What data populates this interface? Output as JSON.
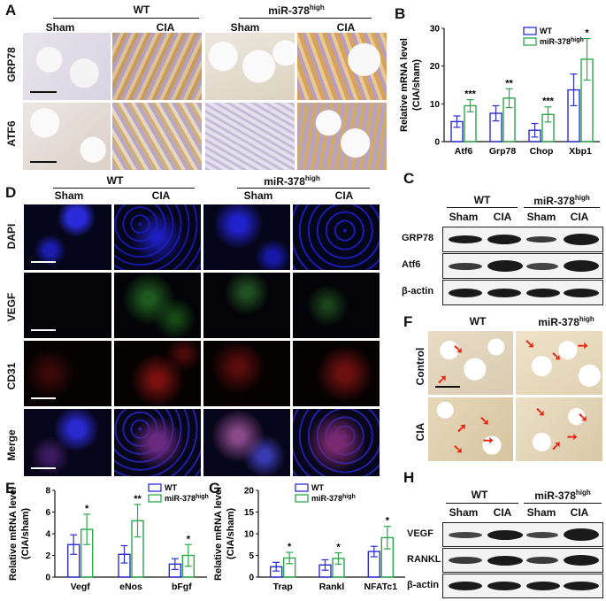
{
  "panels": {
    "A": "A",
    "B": "B",
    "C": "C",
    "D": "D",
    "E": "E",
    "F": "F",
    "G": "G",
    "H": "H"
  },
  "groups": {
    "wt": "WT",
    "mir": "miR-378",
    "mir_sup": "high"
  },
  "conditions": {
    "sham": "Sham",
    "cia": "CIA",
    "control": "Control"
  },
  "panelA": {
    "rows": [
      "GRP78",
      "ATF6"
    ]
  },
  "panelD": {
    "rows": [
      "DAPI",
      "VEGF",
      "CD31",
      "Merge"
    ]
  },
  "panelC": {
    "rows": [
      "GRP78",
      "Atf6",
      "β-actin"
    ]
  },
  "panelH": {
    "rows": [
      "VEGF",
      "RANKL",
      "β-actin"
    ]
  },
  "colors": {
    "wt": "#2b2bd6",
    "mir": "#2aa84a"
  },
  "chart_data": [
    {
      "id": "B",
      "type": "bar",
      "ylabel_line1": "Relative mRNA level",
      "ylabel_line2": "(CIA/sham)",
      "ylim": [
        0,
        30
      ],
      "yticks": [
        "0",
        "10",
        "20",
        "30"
      ],
      "categories": [
        "Atf6",
        "Grp78",
        "Chop",
        "Xbp1"
      ],
      "series": [
        {
          "name": "WT",
          "values": [
            5.3,
            7.5,
            3.0,
            13.7
          ],
          "errors": [
            1.5,
            2.0,
            1.8,
            4.2
          ]
        },
        {
          "name": "miR-378high",
          "values": [
            9.5,
            11.5,
            7.2,
            21.8
          ],
          "errors": [
            1.6,
            2.5,
            2.0,
            5.5
          ]
        }
      ],
      "significance": [
        "***",
        "**",
        "***",
        "*"
      ],
      "legend": "top-right"
    },
    {
      "id": "E",
      "type": "bar",
      "ylabel_line1": "Relative mRNA level",
      "ylabel_line2": "(CIA/sham)",
      "ylim": [
        0,
        8
      ],
      "yticks": [
        "0",
        "2",
        "4",
        "6",
        "8"
      ],
      "categories": [
        "Vegf",
        "eNos",
        "bFgf"
      ],
      "series": [
        {
          "name": "WT",
          "values": [
            3.0,
            2.1,
            1.2
          ],
          "errors": [
            0.9,
            0.8,
            0.5
          ]
        },
        {
          "name": "miR-378high",
          "values": [
            4.4,
            5.2,
            2.0
          ],
          "errors": [
            1.4,
            1.5,
            1.0
          ]
        }
      ],
      "significance": [
        "*",
        "**",
        "*"
      ],
      "legend": "top-right"
    },
    {
      "id": "G",
      "type": "bar",
      "ylabel_line1": "Relative mRNA level",
      "ylabel_line2": "(CIA/sham)",
      "ylim": [
        0,
        20
      ],
      "yticks": [
        "0",
        "5",
        "10",
        "15",
        "20"
      ],
      "categories": [
        "Trap",
        "Rankl",
        "NFATc1"
      ],
      "series": [
        {
          "name": "WT",
          "values": [
            2.4,
            2.8,
            5.9
          ],
          "errors": [
            1.0,
            1.2,
            1.2
          ]
        },
        {
          "name": "miR-378high",
          "values": [
            4.4,
            4.3,
            9.1
          ],
          "errors": [
            1.3,
            1.3,
            2.6
          ]
        }
      ],
      "significance": [
        "*",
        "*",
        "*"
      ],
      "legend": "top-right"
    }
  ]
}
